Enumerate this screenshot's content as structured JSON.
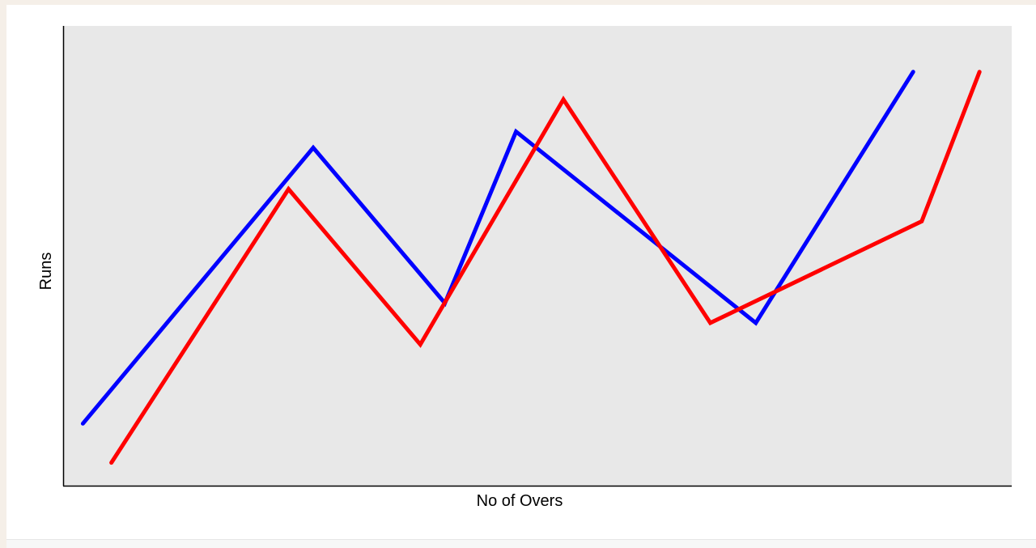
{
  "chart_data": {
    "type": "line",
    "title": "",
    "xlabel": "No of Overs",
    "ylabel": "Runs",
    "grid": false,
    "legend": "none",
    "xlim": [
      0,
      1
    ],
    "ylim": [
      0,
      1
    ],
    "series": [
      {
        "color": "#0000ff",
        "x": [
          0.02,
          0.263,
          0.402,
          0.477,
          0.73,
          0.896
        ],
        "y": [
          0.135,
          0.735,
          0.397,
          0.77,
          0.354,
          0.9
        ]
      },
      {
        "color": "#ff0000",
        "x": [
          0.05,
          0.237,
          0.376,
          0.527,
          0.682,
          0.905,
          0.966
        ],
        "y": [
          0.05,
          0.645,
          0.307,
          0.84,
          0.354,
          0.575,
          0.9
        ]
      }
    ]
  },
  "colors": {
    "plot_background": "#e8e8e8",
    "axis": "#000000"
  }
}
